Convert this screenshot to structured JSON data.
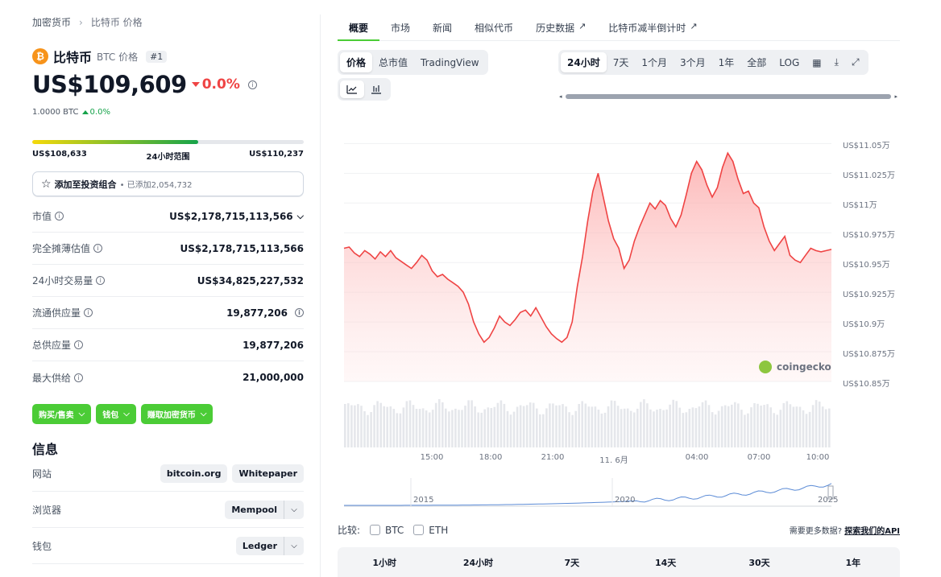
{
  "breadcrumb": {
    "parent": "加密货币",
    "separator": "›",
    "current": "比特币 价格"
  },
  "coin": {
    "logo": "₿",
    "name": "比特币",
    "symbol_label": "BTC 价格",
    "rank": "#1",
    "price": "US$109,609",
    "change_24h": "0.0%",
    "btc_amount": "1.0000 BTC",
    "btc_change": "0.0%"
  },
  "range_24h": {
    "low": "US$108,633",
    "label": "24小时范围",
    "high": "US$110,237",
    "position_fraction": 0.61
  },
  "portfolio": {
    "label": "添加至投资组合",
    "added_text": "• 已添加2,054,732"
  },
  "stats": [
    {
      "label": "市值",
      "value": "US$2,178,715,113,566"
    },
    {
      "label": "完全摊薄估值",
      "value": "US$2,178,715,113,566"
    },
    {
      "label": "24小时交易量",
      "value": "US$34,825,227,532"
    },
    {
      "label": "流通供应量",
      "value": "19,877,206"
    },
    {
      "label": "总供应量",
      "value": "19,877,206"
    },
    {
      "label": "最大供给",
      "value": "21,000,000"
    }
  ],
  "actions": {
    "buy_sell": "购买/售卖",
    "wallet": "钱包",
    "earn": "赚取加密货币"
  },
  "info": {
    "title": "信息",
    "website_label": "网站",
    "website_chips": [
      "bitcoin.org",
      "Whitepaper"
    ],
    "explorer_label": "浏览器",
    "explorer_value": "Mempool",
    "wallet_label": "钱包",
    "wallet_value": "Ledger"
  },
  "tabs": [
    "概要",
    "市场",
    "新闻",
    "相似代币",
    "历史数据",
    "比特币减半倒计时"
  ],
  "chart_mode": [
    "价格",
    "总市值",
    "TradingView"
  ],
  "time_ranges": [
    "24小时",
    "7天",
    "1个月",
    "3个月",
    "1年",
    "全部",
    "LOG"
  ],
  "icons": {
    "calendar": "calendar-icon",
    "download": "download-icon",
    "expand": "expand-icon",
    "line": "line-chart-icon",
    "candle": "candlestick-icon",
    "external": "external-link-icon"
  },
  "chart_data": {
    "type": "area",
    "color": "#ef4444",
    "yticks": [
      "US$11.05万",
      "US$11.025万",
      "US$11万",
      "US$10.975万",
      "US$10.95万",
      "US$10.925万",
      "US$10.9万",
      "US$10.875万",
      "US$10.85万"
    ],
    "ylim": [
      108500,
      110550
    ],
    "xticks": [
      "15:00",
      "18:00",
      "21:00",
      "11. 6月",
      "04:00",
      "07:00",
      "10:00"
    ],
    "values": [
      109620,
      109630,
      109580,
      109550,
      109600,
      109570,
      109530,
      109590,
      109550,
      109600,
      109540,
      109510,
      109480,
      109450,
      109500,
      109560,
      109520,
      109430,
      109380,
      109400,
      109360,
      109330,
      109300,
      109250,
      109150,
      109000,
      108900,
      108830,
      108870,
      108950,
      109050,
      109000,
      108970,
      109020,
      109080,
      109100,
      109050,
      109120,
      109040,
      108960,
      108900,
      108860,
      108830,
      108870,
      109000,
      109300,
      109550,
      109850,
      110100,
      110250,
      110050,
      109850,
      109700,
      109620,
      109450,
      109520,
      109680,
      109800,
      109900,
      110000,
      109950,
      110020,
      109980,
      109870,
      109800,
      109900,
      110070,
      110250,
      110350,
      110280,
      110150,
      110050,
      110130,
      110300,
      110420,
      110350,
      110200,
      110080,
      110100,
      110000,
      109960,
      109800,
      109680,
      109600,
      109660,
      109720,
      109560,
      109520,
      109500,
      109560,
      109620,
      109600,
      109590,
      109600,
      109610
    ],
    "volume_note": "",
    "brand": "coingecko"
  },
  "navigator": {
    "labels": [
      "2015",
      "2020",
      "2025"
    ]
  },
  "compare": {
    "label": "比较:",
    "options": [
      "BTC",
      "ETH"
    ],
    "api_text": "需要更多数据?",
    "api_link": "探索我们的API"
  },
  "period_tabs": [
    "1小时",
    "24小时",
    "7天",
    "14天",
    "30天",
    "1年"
  ]
}
